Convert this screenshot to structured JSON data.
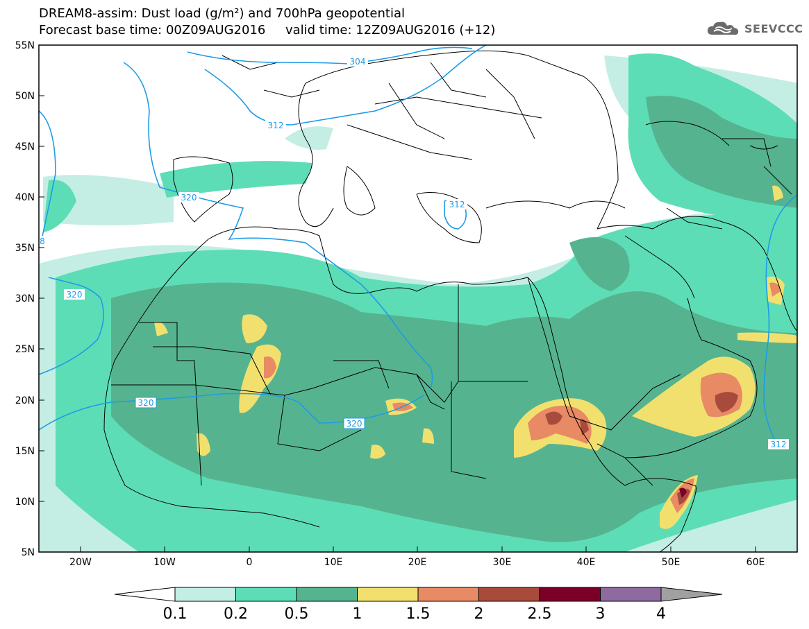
{
  "header": {
    "title_line1": "DREAM8-assim: Dust load (g/m²) and 700hPa geopotential",
    "title_line2": "Forecast base time: 00Z09AUG2016     valid time: 12Z09AUG2016 (+12)",
    "logo_text": "SEEVCCC"
  },
  "map": {
    "lat_labels": [
      "55N",
      "50N",
      "45N",
      "40N",
      "35N",
      "30N",
      "25N",
      "20N",
      "15N",
      "10N",
      "5N"
    ],
    "lon_labels": [
      "20W",
      "10W",
      "0",
      "10E",
      "20E",
      "30E",
      "40E",
      "50E",
      "60E"
    ],
    "contour_labels": [
      "304",
      "312",
      "320",
      "320",
      "312",
      "320",
      "320",
      "320",
      "312",
      "8"
    ]
  },
  "colorbar": {
    "levels": [
      "0.1",
      "0.2",
      "0.5",
      "1",
      "1.5",
      "2",
      "2.5",
      "3",
      "4"
    ],
    "colors": [
      "#c4eee4",
      "#5dddb6",
      "#55b48f",
      "#f2e06e",
      "#e88a64",
      "#a84b3d",
      "#7a0028",
      "#8e6a9e"
    ],
    "under_color": "#ffffff",
    "over_color": "#a0a0a0"
  },
  "colors": {
    "geopotential_line": "#1e9be6",
    "border": "#000000",
    "frame": "#000000"
  }
}
